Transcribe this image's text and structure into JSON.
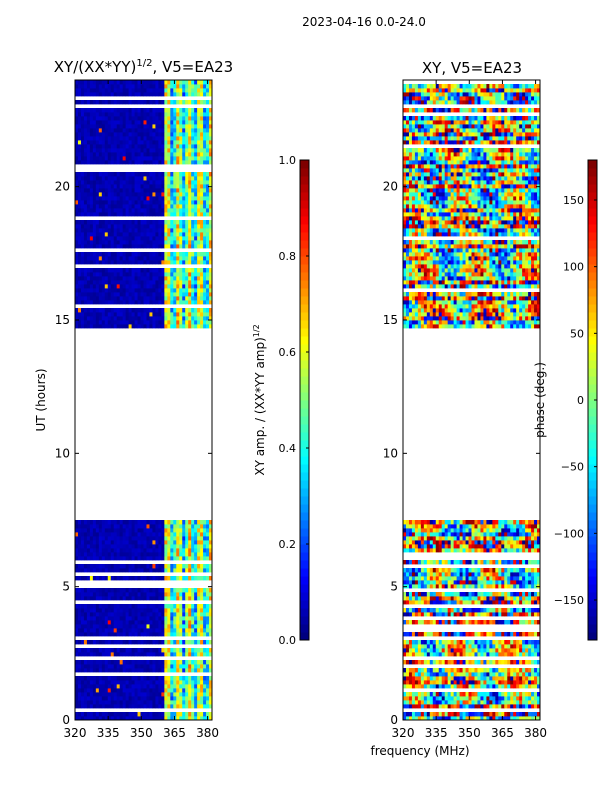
{
  "suptitle": "2023-04-16 0.0-24.0",
  "shared_xlabel": "frequency (MHz)",
  "colors": {
    "jet": [
      "#00007f",
      "#0000ff",
      "#007fff",
      "#00ffff",
      "#7fff7f",
      "#ffff00",
      "#ff7f00",
      "#ff0000",
      "#7f0000"
    ],
    "axis": "#000000",
    "gap": "#ffffff"
  },
  "chart_data": [
    {
      "type": "heatmap",
      "title_prefix": "XY/(XX*YY)",
      "title_exp": "1/2",
      "title_suffix": ", V5=EA23",
      "ylabel": "UT (hours)",
      "xlim": [
        320,
        382
      ],
      "ylim": [
        0,
        24
      ],
      "xticks": [
        320,
        335,
        350,
        365,
        380
      ],
      "yticks": [
        0,
        5,
        10,
        15,
        20
      ],
      "data_gap_hours": [
        7.5,
        14.7
      ],
      "band_change_mhz": 360,
      "quantity": "amplitude",
      "colorbar": {
        "label_main": "XY amp. / (XX*YY amp)",
        "label_exp": "1/2",
        "range": [
          0.0,
          1.0
        ],
        "ticks": [
          "0.0",
          "0.2",
          "0.4",
          "0.6",
          "0.8",
          "1.0"
        ],
        "tick_values": [
          0.0,
          0.2,
          0.4,
          0.6,
          0.8,
          1.0
        ]
      }
    },
    {
      "type": "heatmap",
      "title": "XY, V5=EA23",
      "ylabel": "",
      "xlim": [
        320,
        382
      ],
      "ylim": [
        0,
        24
      ],
      "xticks": [
        320,
        335,
        350,
        365,
        380
      ],
      "yticks": [
        0,
        5,
        10,
        15,
        20
      ],
      "data_gap_hours": [
        7.5,
        14.7
      ],
      "quantity": "phase",
      "colorbar": {
        "label": "phase (deg.)",
        "range": [
          -180,
          180
        ],
        "ticks": [
          "−150",
          "−100",
          "−50",
          "0",
          "50",
          "100",
          "150"
        ],
        "tick_values": [
          -150,
          -100,
          -50,
          0,
          50,
          100,
          150
        ]
      }
    }
  ]
}
